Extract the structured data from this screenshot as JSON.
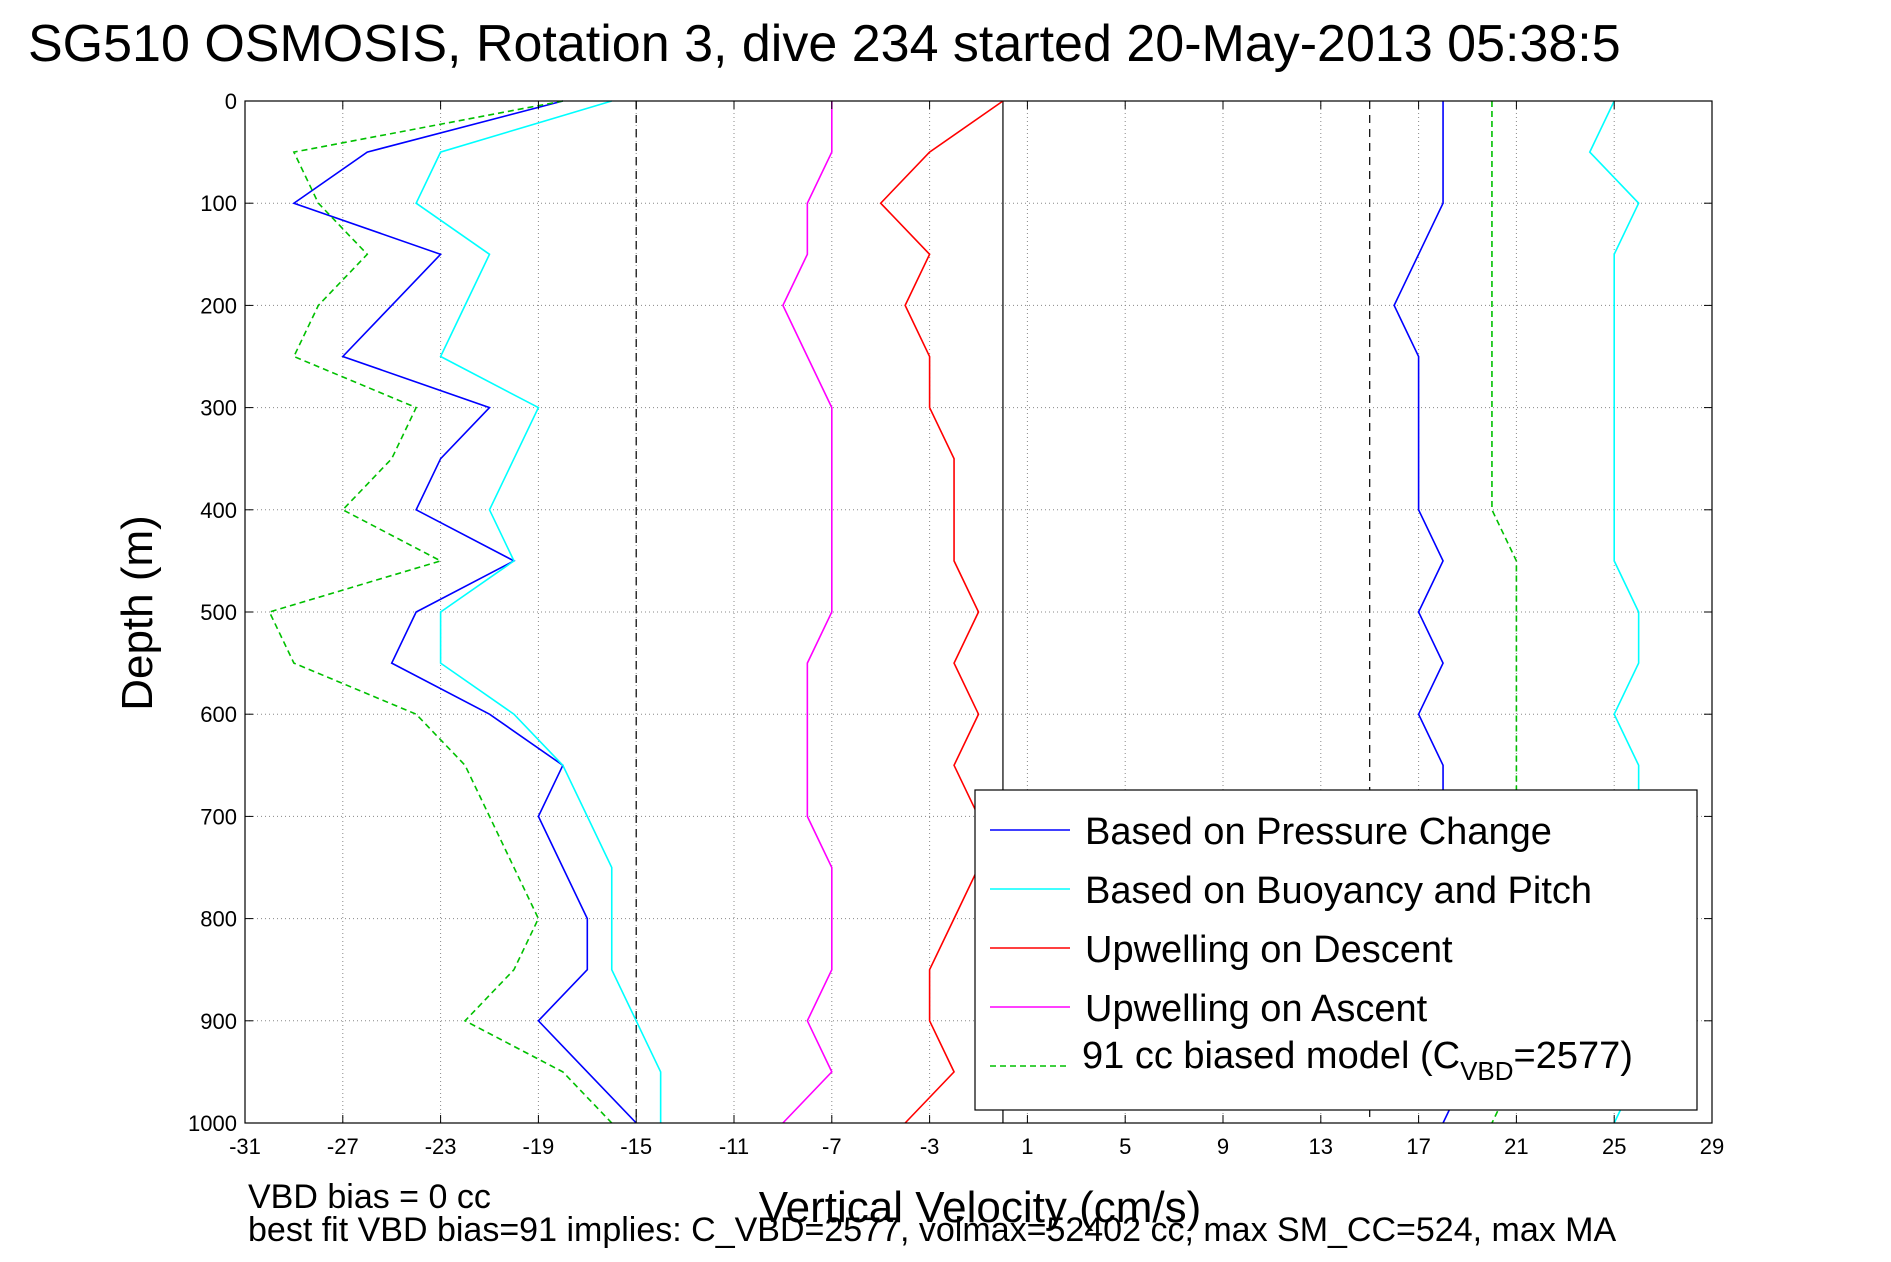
{
  "chart_data": {
    "type": "line",
    "title": "SG510 OSMOSIS, Rotation 3, dive 234 started 20-May-2013 05:38:5",
    "xlabel": "Vertical Velocity (cm/s)",
    "ylabel": "Depth (m)",
    "xlim": [
      -31,
      29
    ],
    "ylim": [
      1000,
      0
    ],
    "y_reversed": true,
    "grid": true,
    "legend_position": "bottom-right",
    "x_ticks": [
      -31,
      -27,
      -23,
      -19,
      -15,
      -11,
      -7,
      -3,
      1,
      5,
      9,
      13,
      17,
      21,
      25,
      29
    ],
    "y_ticks": [
      0,
      100,
      200,
      300,
      400,
      500,
      600,
      700,
      800,
      900,
      1000
    ],
    "reference_lines": [
      {
        "x": -15,
        "style": "dashed"
      },
      {
        "x": 0,
        "style": "solid"
      },
      {
        "x": 15,
        "style": "dashed"
      }
    ],
    "series": [
      {
        "name": "Based on Pressure Change",
        "color": "#0000ff",
        "style": "solid",
        "depth": [
          0,
          50,
          100,
          150,
          200,
          250,
          300,
          350,
          400,
          450,
          500,
          550,
          600,
          650,
          700,
          750,
          800,
          850,
          900,
          950,
          1000
        ],
        "descent_velocity": [
          -18,
          -26,
          -29,
          -23,
          -25,
          -27,
          -21,
          -23,
          -24,
          -20,
          -24,
          -25,
          -21,
          -18,
          -19,
          -18,
          -17,
          -17,
          -19,
          -17,
          -15
        ],
        "ascent_velocity": [
          18,
          18,
          18,
          17,
          16,
          17,
          17,
          17,
          17,
          18,
          17,
          18,
          17,
          18,
          18,
          18,
          18,
          18,
          18,
          19,
          18
        ]
      },
      {
        "name": "Based on Buoyancy and Pitch",
        "color": "#00ffff",
        "style": "solid",
        "depth": [
          0,
          50,
          100,
          150,
          200,
          250,
          300,
          350,
          400,
          450,
          500,
          550,
          600,
          650,
          700,
          750,
          800,
          850,
          900,
          950,
          1000
        ],
        "descent_velocity": [
          -16,
          -23,
          -24,
          -21,
          -22,
          -23,
          -19,
          -20,
          -21,
          -20,
          -23,
          -23,
          -20,
          -18,
          -17,
          -16,
          -16,
          -16,
          -15,
          -14,
          -14
        ],
        "ascent_velocity": [
          25,
          24,
          26,
          25,
          25,
          25,
          25,
          25,
          25,
          25,
          26,
          26,
          25,
          26,
          26,
          26,
          26,
          26,
          26,
          26,
          25
        ]
      },
      {
        "name": "Upwelling on Descent",
        "color": "#ff0000",
        "style": "solid",
        "depth": [
          0,
          50,
          100,
          150,
          200,
          250,
          300,
          350,
          400,
          450,
          500,
          550,
          600,
          650,
          700,
          750,
          800,
          850,
          900,
          950,
          1000
        ],
        "values": [
          0,
          -3,
          -5,
          -3,
          -4,
          -3,
          -3,
          -2,
          -2,
          -2,
          -1,
          -2,
          -1,
          -2,
          -1,
          -1,
          -2,
          -3,
          -3,
          -2,
          -4
        ]
      },
      {
        "name": "Upwelling on Ascent",
        "color": "#ff00ff",
        "style": "solid",
        "depth": [
          0,
          50,
          100,
          150,
          200,
          250,
          300,
          350,
          400,
          450,
          500,
          550,
          600,
          650,
          700,
          750,
          800,
          850,
          900,
          950,
          1000
        ],
        "values": [
          -7,
          -7,
          -8,
          -8,
          -9,
          -8,
          -7,
          -7,
          -7,
          -7,
          -7,
          -8,
          -8,
          -8,
          -8,
          -7,
          -7,
          -7,
          -8,
          -7,
          -9
        ]
      },
      {
        "name": "91 cc biased model (C_VBD=2577)",
        "color": "#00c000",
        "style": "dashed",
        "depth": [
          0,
          50,
          100,
          150,
          200,
          250,
          300,
          350,
          400,
          450,
          500,
          550,
          600,
          650,
          700,
          750,
          800,
          850,
          900,
          950,
          1000
        ],
        "descent_velocity": [
          -18,
          -29,
          -28,
          -26,
          -28,
          -29,
          -24,
          -25,
          -27,
          -23,
          -30,
          -29,
          -24,
          -22,
          -21,
          -20,
          -19,
          -20,
          -22,
          -18,
          -16
        ],
        "ascent_velocity": [
          20,
          20,
          20,
          20,
          20,
          20,
          20,
          20,
          20,
          21,
          21,
          21,
          21,
          21,
          21,
          21,
          21,
          21,
          21,
          21,
          20
        ]
      }
    ],
    "legend": {
      "entries": [
        {
          "text": "Based on Pressure Change",
          "color": "#0000ff",
          "style": "solid"
        },
        {
          "text": "Based on Buoyancy and Pitch",
          "color": "#00ffff",
          "style": "solid"
        },
        {
          "text": "Upwelling on Descent",
          "color": "#ff0000",
          "style": "solid"
        },
        {
          "text": "Upwelling on Ascent",
          "color": "#ff00ff",
          "style": "solid"
        }
      ],
      "model_entry": {
        "prefix": "91 cc biased model (C",
        "subscript": "VBD",
        "suffix": "=2577)",
        "color": "#00c000",
        "style": "dashed"
      }
    },
    "notes": [
      "VBD bias = 0 cc",
      "best fit VBD bias=91 implies: C_VBD=2577, volmax=52402 cc, max SM_CC=524, max MA"
    ]
  }
}
